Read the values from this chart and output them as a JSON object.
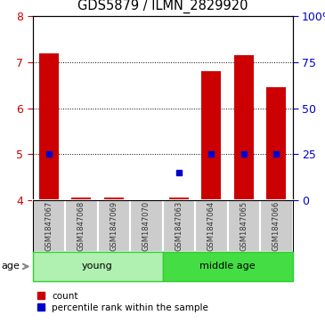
{
  "title": "GDS5879 / ILMN_2829920",
  "samples": [
    "GSM1847067",
    "GSM1847068",
    "GSM1847069",
    "GSM1847070",
    "GSM1847063",
    "GSM1847064",
    "GSM1847065",
    "GSM1847066"
  ],
  "groups": [
    {
      "name": "young",
      "indices": [
        0,
        1,
        2,
        3
      ],
      "color": "#b0f0b0",
      "border_color": "#33cc33"
    },
    {
      "name": "middle age",
      "indices": [
        4,
        5,
        6,
        7
      ],
      "color": "#44dd44",
      "border_color": "#33cc33"
    }
  ],
  "count_values": [
    7.2,
    4.05,
    4.05,
    4.0,
    4.05,
    6.8,
    7.15,
    6.45
  ],
  "percentile_values": [
    25,
    null,
    null,
    null,
    15,
    25,
    25,
    25
  ],
  "ylim_left": [
    4,
    8
  ],
  "ylim_right": [
    0,
    100
  ],
  "yticks_left": [
    4,
    5,
    6,
    7,
    8
  ],
  "yticks_right": [
    0,
    25,
    50,
    75,
    100
  ],
  "ytick_labels_right": [
    "0",
    "25",
    "50",
    "75",
    "100%"
  ],
  "ytick_labels_left": [
    "4",
    "5",
    "6",
    "7",
    "8"
  ],
  "bar_color": "#cc0000",
  "dot_color": "#0000cc",
  "bar_width": 0.6,
  "label_color_left": "#cc0000",
  "label_color_right": "#0000cc",
  "age_label": "age",
  "legend_count": "count",
  "legend_percentile": "percentile rank within the sample",
  "sample_box_color": "#cccccc",
  "sample_text_color": "#333333",
  "grid_ticks": [
    5,
    6,
    7
  ]
}
